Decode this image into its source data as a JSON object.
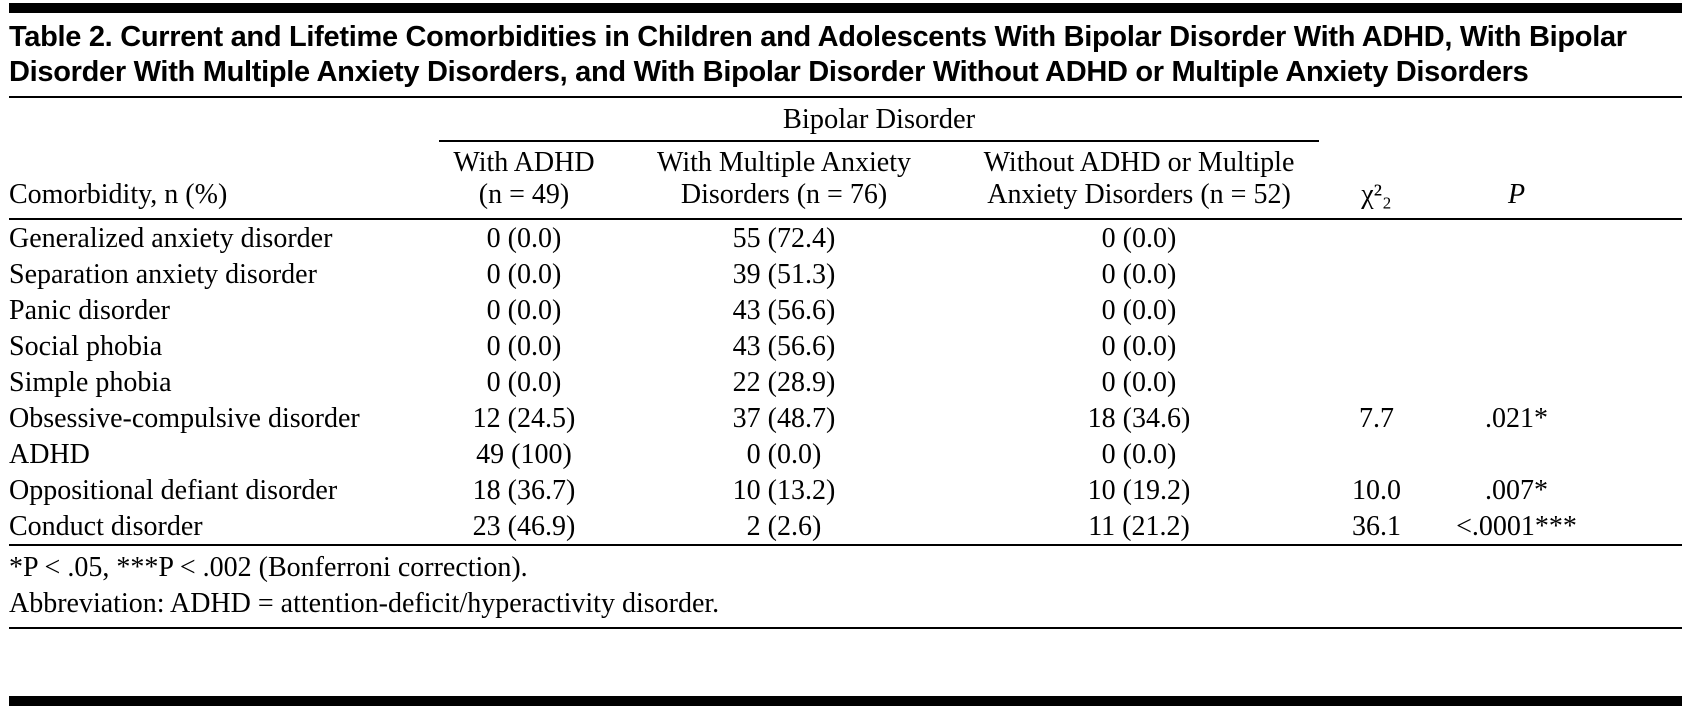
{
  "title": "Table 2. Current and Lifetime Comorbidities in Children and Adolescents With Bipolar Disorder With ADHD, With Bipolar Disorder With Multiple Anxiety Disorders, and With Bipolar Disorder Without ADHD or Multiple Anxiety Disorders",
  "table": {
    "spanner": "Bipolar Disorder",
    "columns": {
      "comorbidity": "Comorbidity, n (%)",
      "with_adhd": "With ADHD (n = 49)",
      "with_multiple_anxiety": "With Multiple Anxiety Disorders (n = 76)",
      "without_adhd_or_anxiety": "Without ADHD or Multiple Anxiety Disorders (n = 52)",
      "chi_square": "χ²₂",
      "p": "P"
    },
    "rows": [
      {
        "cells": [
          "Generalized anxiety disorder",
          "0 (0.0)",
          "55 (72.4)",
          "0 (0.0)",
          "",
          ""
        ]
      },
      {
        "cells": [
          "Separation anxiety disorder",
          "0 (0.0)",
          "39 (51.3)",
          "0 (0.0)",
          "",
          ""
        ]
      },
      {
        "cells": [
          "Panic disorder",
          "0 (0.0)",
          "43 (56.6)",
          "0 (0.0)",
          "",
          ""
        ]
      },
      {
        "cells": [
          "Social phobia",
          "0 (0.0)",
          "43 (56.6)",
          "0 (0.0)",
          "",
          ""
        ]
      },
      {
        "cells": [
          "Simple phobia",
          "0 (0.0)",
          "22 (28.9)",
          "0 (0.0)",
          "",
          ""
        ]
      },
      {
        "cells": [
          "Obsessive-compulsive disorder",
          "12 (24.5)",
          "37 (48.7)",
          "18 (34.6)",
          "7.7",
          ".021*"
        ]
      },
      {
        "cells": [
          "ADHD",
          "49 (100)",
          "0 (0.0)",
          "0 (0.0)",
          "",
          ""
        ]
      },
      {
        "cells": [
          "Oppositional defiant disorder",
          "18 (36.7)",
          "10 (13.2)",
          "10 (19.2)",
          "10.0",
          ".007*"
        ]
      },
      {
        "cells": [
          "Conduct disorder",
          "23 (46.9)",
          "2 (2.6)",
          "11 (21.2)",
          "36.1",
          "<.0001***"
        ]
      }
    ]
  },
  "footnotes": {
    "significance": "*P < .05, ***P < .002 (Bonferroni correction).",
    "abbreviation": "Abbreviation: ADHD = attention-deficit/hyperactivity disorder."
  }
}
